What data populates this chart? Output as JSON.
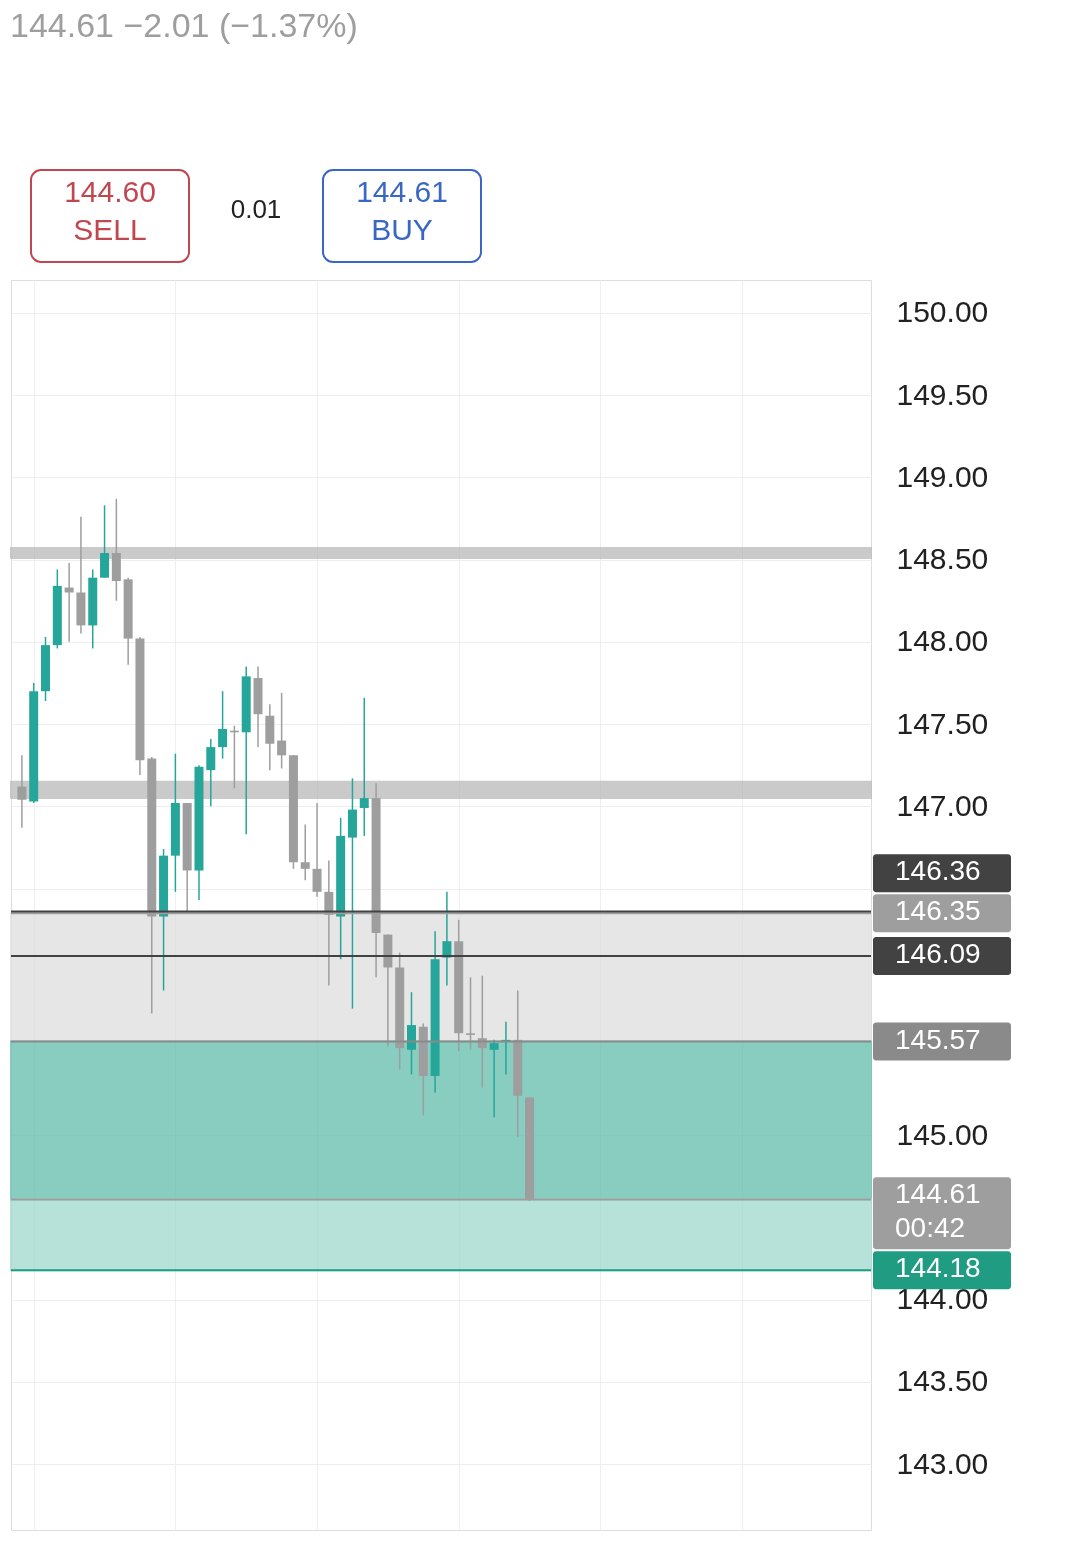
{
  "chart_data": {
    "type": "candlestick",
    "subtitle": "144.61  −2.01 (−1.37%)",
    "annotations": [
      "144.60\nSELL",
      "0.01",
      "144.61\nBUY"
    ],
    "categories": [
      null,
      null,
      null,
      null,
      null,
      null,
      null,
      null,
      null,
      null,
      null,
      null,
      null,
      null,
      null,
      null,
      null,
      null,
      null,
      null,
      null,
      null,
      null,
      null,
      null,
      null,
      null,
      null,
      null,
      null,
      null,
      null,
      null,
      null,
      null,
      null,
      null,
      null,
      null,
      null,
      null,
      null,
      null,
      null,
      null,
      null,
      null,
      null,
      null,
      null,
      null,
      null,
      null,
      null,
      null,
      null,
      null,
      null,
      null,
      null,
      null,
      null,
      null,
      null,
      null,
      null,
      null,
      null,
      null,
      null,
      null,
      null
    ],
    "ohlc": [
      [
        147.12,
        147.31,
        146.87,
        147.04
      ],
      [
        147.03,
        147.75,
        147.02,
        147.7
      ],
      [
        147.7,
        148.03,
        147.64,
        147.98
      ],
      [
        147.98,
        148.44,
        147.96,
        148.34
      ],
      [
        148.33,
        148.48,
        148.0,
        148.3
      ],
      [
        148.3,
        148.76,
        148.05,
        148.1
      ],
      [
        148.1,
        148.44,
        147.96,
        148.39
      ],
      [
        148.39,
        148.83,
        148.39,
        148.54
      ],
      [
        148.54,
        148.87,
        148.25,
        148.37
      ],
      [
        148.38,
        148.39,
        147.86,
        148.02
      ],
      [
        148.02,
        148.03,
        147.19,
        147.28
      ],
      [
        147.29,
        147.3,
        145.74,
        146.33
      ],
      [
        146.33,
        146.74,
        145.88,
        146.7
      ],
      [
        146.7,
        147.32,
        146.48,
        147.02
      ],
      [
        147.02,
        147.02,
        146.36,
        146.61
      ],
      [
        146.61,
        147.25,
        146.43,
        147.24
      ],
      [
        147.22,
        147.41,
        147.0,
        147.36
      ],
      [
        147.36,
        147.7,
        147.29,
        147.47
      ],
      [
        147.46,
        147.49,
        147.11,
        147.45
      ],
      [
        147.45,
        147.85,
        146.83,
        147.79
      ],
      [
        147.78,
        147.85,
        147.36,
        147.56
      ],
      [
        147.55,
        147.62,
        147.22,
        147.38
      ],
      [
        147.4,
        147.69,
        147.23,
        147.31
      ],
      [
        147.31,
        147.31,
        146.62,
        146.66
      ],
      [
        146.66,
        146.89,
        146.55,
        146.62
      ],
      [
        146.62,
        147.02,
        146.45,
        146.48
      ],
      [
        146.48,
        146.67,
        145.91,
        146.34
      ],
      [
        146.33,
        146.93,
        146.07,
        146.82
      ],
      [
        146.81,
        147.17,
        145.77,
        146.98
      ],
      [
        146.99,
        147.66,
        146.82,
        147.05
      ],
      [
        147.05,
        147.14,
        145.96,
        146.23
      ],
      [
        146.22,
        146.22,
        145.54,
        146.02
      ],
      [
        146.02,
        146.11,
        145.4,
        145.53
      ],
      [
        145.52,
        145.87,
        145.37,
        145.67
      ],
      [
        145.66,
        145.68,
        145.12,
        145.36
      ],
      [
        145.36,
        146.24,
        145.26,
        146.07
      ],
      [
        146.08,
        146.48,
        145.91,
        146.18
      ],
      [
        146.18,
        146.31,
        145.51,
        145.62
      ],
      [
        145.62,
        145.96,
        145.52,
        145.61
      ],
      [
        145.59,
        145.97,
        145.29,
        145.53
      ],
      [
        145.52,
        145.58,
        145.11,
        145.56
      ],
      [
        145.57,
        145.69,
        145.37,
        145.58
      ],
      [
        145.58,
        145.88,
        144.99,
        145.24
      ],
      [
        145.23,
        145.23,
        144.6,
        144.61
      ],
      null,
      null,
      null,
      null,
      null,
      null,
      null,
      null,
      null,
      null,
      null,
      null,
      null,
      null,
      null,
      null,
      null,
      null,
      null,
      null,
      null,
      null,
      null,
      null,
      null,
      null,
      null,
      null
    ],
    "colors": [
      "#9e9e9e",
      "#26a69a",
      "#26a69a",
      "#26a69a",
      "#9e9e9e",
      "#9e9e9e",
      "#26a69a",
      "#26a69a",
      "#9e9e9e",
      "#9e9e9e",
      "#9e9e9e",
      "#9e9e9e",
      "#26a69a",
      "#26a69a",
      "#9e9e9e",
      "#26a69a",
      "#26a69a",
      "#26a69a",
      "#9e9e9e",
      "#26a69a",
      "#9e9e9e",
      "#9e9e9e",
      "#9e9e9e",
      "#9e9e9e",
      "#9e9e9e",
      "#9e9e9e",
      "#9e9e9e",
      "#26a69a",
      "#26a69a",
      "#26a69a",
      "#9e9e9e",
      "#9e9e9e",
      "#9e9e9e",
      "#26a69a",
      "#9e9e9e",
      "#26a69a",
      "#26a69a",
      "#9e9e9e",
      "#9e9e9e",
      "#9e9e9e",
      "#26a69a",
      "#26a69a",
      "#9e9e9e",
      "#9e9e9e",
      null,
      null,
      null,
      null,
      null,
      null,
      null,
      null,
      null,
      null,
      null,
      null,
      null,
      null,
      null,
      null,
      null,
      null,
      null,
      null,
      null,
      null,
      null,
      null,
      null,
      null,
      null,
      null
    ],
    "ylim": [
      142.6,
      150.2
    ],
    "yticks": [
      {
        "value": 150,
        "label": "150.00"
      },
      {
        "value": 149.5,
        "label": "149.50"
      },
      {
        "value": 149,
        "label": "149.00"
      },
      {
        "value": 148.5,
        "label": "148.50"
      },
      {
        "value": 148,
        "label": "148.00"
      },
      {
        "value": 147.5,
        "label": "147.50"
      },
      {
        "value": 147,
        "label": "147.00"
      },
      {
        "value": 146.5,
        "label": null
      },
      {
        "value": 145,
        "label": "145.00"
      },
      {
        "value": 144,
        "label": "144.00"
      },
      {
        "value": 143.5,
        "label": "143.50"
      },
      {
        "value": 143,
        "label": "143.00"
      }
    ],
    "bands": [
      {
        "axis": "y",
        "from": 148.51,
        "to": 148.57,
        "color": "#bdbdbd"
      },
      {
        "axis": "y",
        "from": 147.05,
        "to": 147.15,
        "color": "#bdbdbd"
      },
      {
        "axis": "y",
        "from": 145.57,
        "to": 146.35,
        "color": "#e0e0e0"
      },
      {
        "axis": "y",
        "from": 144.61,
        "to": 145.57,
        "color": "#6cc1b1"
      },
      {
        "axis": "y",
        "from": 144.18,
        "to": 144.61,
        "color": "#a5dbd2"
      }
    ],
    "ref_lines": [
      {
        "axis": "y",
        "value": 146.36,
        "label": "146.36",
        "color": "#424242"
      },
      {
        "axis": "y",
        "value": 146.35,
        "label": "146.35",
        "color": "#9e9e9e"
      },
      {
        "axis": "y",
        "value": 146.09,
        "label": "146.09",
        "color": "#424242"
      },
      {
        "axis": "y",
        "value": 145.57,
        "label": "145.57",
        "color": "#8a8a8a"
      },
      {
        "axis": "y",
        "value": 144.61,
        "label": "144.61\n00:42",
        "color": "#9e9e9e"
      },
      {
        "axis": "y",
        "value": 144.18,
        "label": "144.18",
        "color": "#1f9c82"
      }
    ],
    "grid": true,
    "tick_labels": "y"
  }
}
